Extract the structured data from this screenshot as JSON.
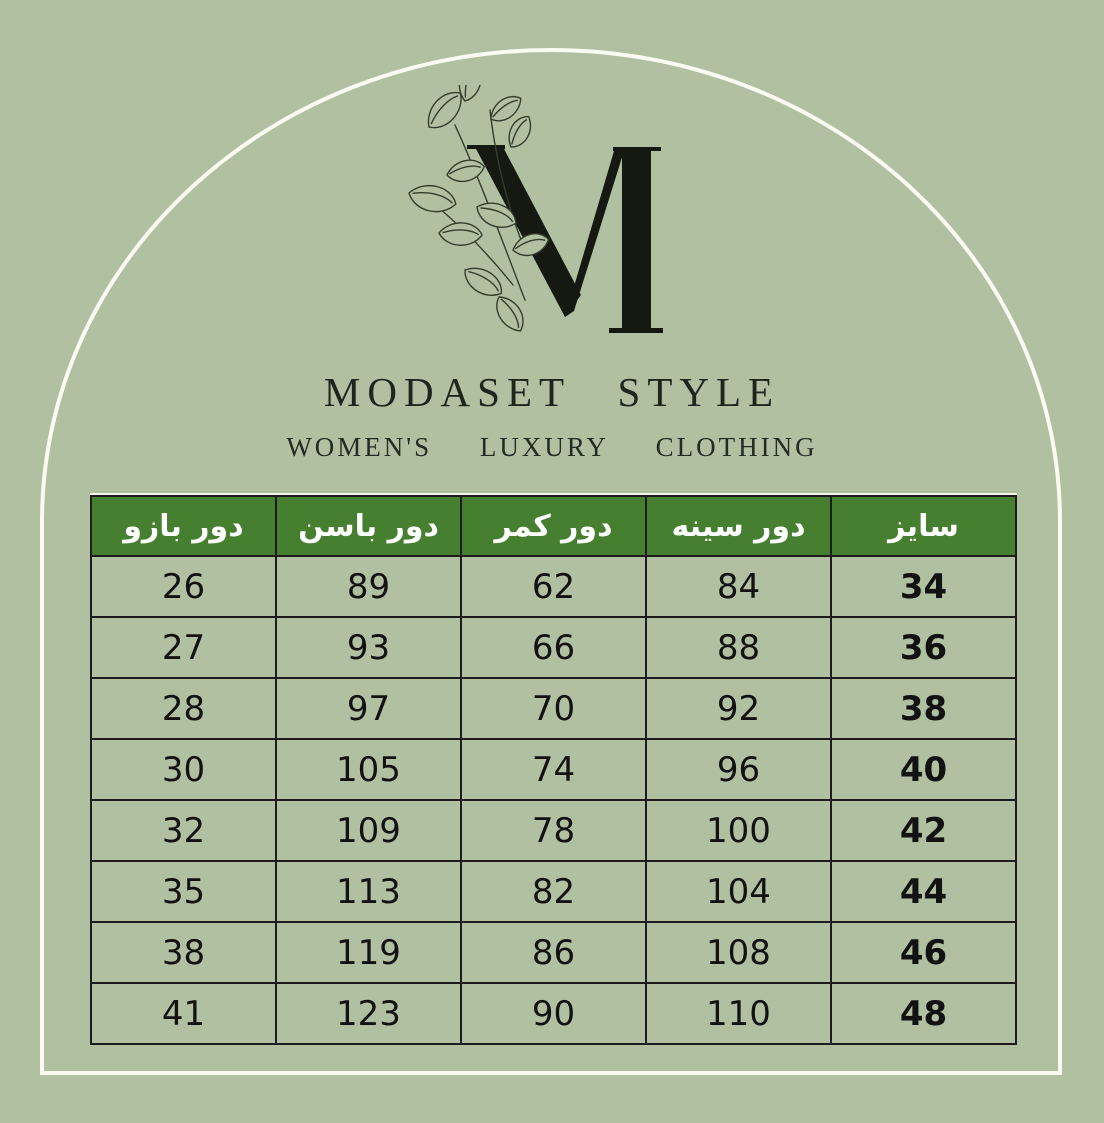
{
  "page": {
    "background_color": "#b2c0a2",
    "arch_border_color": "#fafcf2"
  },
  "brand": {
    "monogram": "M",
    "name": "MODASET STYLE",
    "tagline": "WOMEN'S LUXURY CLOTHING",
    "header_green": "#467f2f",
    "text_color": "#1d261d"
  },
  "chart_data": {
    "type": "table",
    "title": "MODASET STYLE size chart",
    "direction": "rtl",
    "columns": [
      "سایز",
      "دور سینه",
      "دور کمر",
      "دور  باسن",
      "دور بازو"
    ],
    "column_keys": [
      "size",
      "bust",
      "waist",
      "hip",
      "arm"
    ],
    "rows": [
      [
        "34",
        "84",
        "62",
        "89",
        "26"
      ],
      [
        "36",
        "88",
        "66",
        "93",
        "27"
      ],
      [
        "38",
        "92",
        "70",
        "97",
        "28"
      ],
      [
        "40",
        "96",
        "74",
        "105",
        "30"
      ],
      [
        "42",
        "100",
        "78",
        "109",
        "32"
      ],
      [
        "44",
        "104",
        "82",
        "113",
        "35"
      ],
      [
        "46",
        "108",
        "86",
        "119",
        "38"
      ],
      [
        "48",
        "110",
        "90",
        "123",
        "41"
      ]
    ]
  }
}
